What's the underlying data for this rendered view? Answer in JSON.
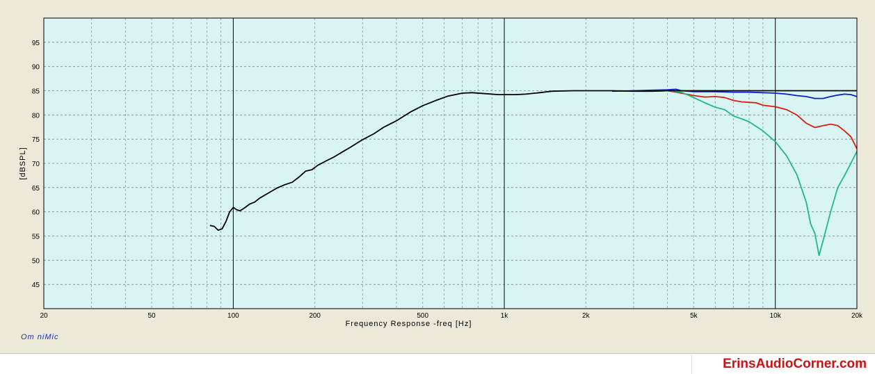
{
  "app_label": "Om niMic",
  "watermark": "ErinsAudioCorner.com",
  "chart_data": {
    "type": "line",
    "xlabel": "Frequency Response -freq [Hz]",
    "ylabel": "[dBSPL]",
    "x_scale": "log",
    "xlim": [
      20,
      20000
    ],
    "ylim": [
      40,
      100
    ],
    "x_ticks": [
      {
        "value": 20,
        "label": "20"
      },
      {
        "value": 50,
        "label": "50"
      },
      {
        "value": 100,
        "label": "100"
      },
      {
        "value": 200,
        "label": "200"
      },
      {
        "value": 500,
        "label": "500"
      },
      {
        "value": 1000,
        "label": "1k"
      },
      {
        "value": 2000,
        "label": "2k"
      },
      {
        "value": 5000,
        "label": "5k"
      },
      {
        "value": 10000,
        "label": "10k"
      },
      {
        "value": 20000,
        "label": "20k"
      }
    ],
    "y_ticks": [
      45,
      50,
      55,
      60,
      65,
      70,
      75,
      80,
      85,
      90,
      95
    ],
    "grid": true,
    "colors": {
      "plot_bg": "#d8f5f3",
      "base": "#000000",
      "blue": "#0a1fcc",
      "red": "#e01a10",
      "green": "#1fb887"
    },
    "base_curve": {
      "color": "base",
      "points": [
        [
          82,
          57.2
        ],
        [
          85,
          57.0
        ],
        [
          88,
          56.2
        ],
        [
          91,
          56.5
        ],
        [
          94,
          58.0
        ],
        [
          97,
          60.0
        ],
        [
          100,
          60.9
        ],
        [
          103,
          60.4
        ],
        [
          106,
          60.2
        ],
        [
          110,
          60.8
        ],
        [
          115,
          61.6
        ],
        [
          120,
          62.0
        ],
        [
          125,
          62.8
        ],
        [
          135,
          63.9
        ],
        [
          145,
          64.9
        ],
        [
          155,
          65.6
        ],
        [
          165,
          66.1
        ],
        [
          175,
          67.2
        ],
        [
          185,
          68.4
        ],
        [
          195,
          68.7
        ],
        [
          205,
          69.6
        ],
        [
          220,
          70.5
        ],
        [
          235,
          71.3
        ],
        [
          250,
          72.2
        ],
        [
          270,
          73.3
        ],
        [
          300,
          74.9
        ],
        [
          330,
          76.1
        ],
        [
          360,
          77.5
        ],
        [
          400,
          78.8
        ],
        [
          450,
          80.6
        ],
        [
          500,
          81.9
        ],
        [
          560,
          83.0
        ],
        [
          620,
          83.9
        ],
        [
          700,
          84.5
        ],
        [
          760,
          84.6
        ],
        [
          850,
          84.4
        ],
        [
          950,
          84.2
        ],
        [
          1000,
          84.2
        ],
        [
          1100,
          84.2
        ],
        [
          1200,
          84.3
        ],
        [
          1350,
          84.6
        ],
        [
          1500,
          84.9
        ],
        [
          1800,
          85.0
        ],
        [
          2000,
          85.0
        ],
        [
          2500,
          85.0
        ],
        [
          3000,
          84.9
        ],
        [
          3500,
          84.9
        ],
        [
          4000,
          85.0
        ]
      ]
    },
    "series": [
      {
        "color": "blue",
        "points": [
          [
            2500,
            84.9
          ],
          [
            3000,
            85.0
          ],
          [
            3500,
            85.1
          ],
          [
            4000,
            85.2
          ],
          [
            4300,
            85.3
          ],
          [
            4500,
            85.0
          ],
          [
            5000,
            84.8
          ],
          [
            6000,
            84.8
          ],
          [
            7000,
            84.7
          ],
          [
            8000,
            84.7
          ],
          [
            9000,
            84.6
          ],
          [
            10000,
            84.5
          ],
          [
            11000,
            84.3
          ],
          [
            12000,
            84.0
          ],
          [
            13000,
            83.8
          ],
          [
            14000,
            83.4
          ],
          [
            15000,
            83.4
          ],
          [
            16000,
            83.8
          ],
          [
            17000,
            84.1
          ],
          [
            18000,
            84.3
          ],
          [
            19000,
            84.2
          ],
          [
            20000,
            83.8
          ]
        ]
      },
      {
        "color": "red",
        "points": [
          [
            3500,
            84.9
          ],
          [
            4000,
            85.0
          ],
          [
            4500,
            84.5
          ],
          [
            5000,
            84.0
          ],
          [
            5500,
            83.7
          ],
          [
            6000,
            83.8
          ],
          [
            6500,
            83.6
          ],
          [
            7000,
            83.0
          ],
          [
            7500,
            82.7
          ],
          [
            8000,
            82.6
          ],
          [
            8500,
            82.5
          ],
          [
            9000,
            82.0
          ],
          [
            10000,
            81.7
          ],
          [
            11000,
            81.1
          ],
          [
            12000,
            80.0
          ],
          [
            13000,
            78.3
          ],
          [
            14000,
            77.4
          ],
          [
            15000,
            77.8
          ],
          [
            16000,
            78.1
          ],
          [
            17000,
            77.8
          ],
          [
            18000,
            76.7
          ],
          [
            19000,
            75.5
          ],
          [
            20000,
            73.0
          ]
        ]
      },
      {
        "color": "green",
        "points": [
          [
            3500,
            84.9
          ],
          [
            4000,
            85.0
          ],
          [
            4500,
            84.7
          ],
          [
            5000,
            83.6
          ],
          [
            5500,
            82.5
          ],
          [
            6000,
            81.6
          ],
          [
            6500,
            81.1
          ],
          [
            7000,
            79.8
          ],
          [
            7500,
            79.2
          ],
          [
            8000,
            78.6
          ],
          [
            9000,
            76.7
          ],
          [
            10000,
            74.5
          ],
          [
            11000,
            71.6
          ],
          [
            12000,
            67.7
          ],
          [
            13000,
            62.0
          ],
          [
            13500,
            57.5
          ],
          [
            14000,
            55.5
          ],
          [
            14500,
            51.0
          ],
          [
            15000,
            54.0
          ],
          [
            16000,
            60.0
          ],
          [
            17000,
            65.0
          ],
          [
            18000,
            67.5
          ],
          [
            19000,
            70.0
          ],
          [
            20000,
            72.5
          ]
        ]
      }
    ],
    "reference_line": {
      "color": "base",
      "value": 85.0,
      "from": 4000,
      "to": 20000
    }
  }
}
